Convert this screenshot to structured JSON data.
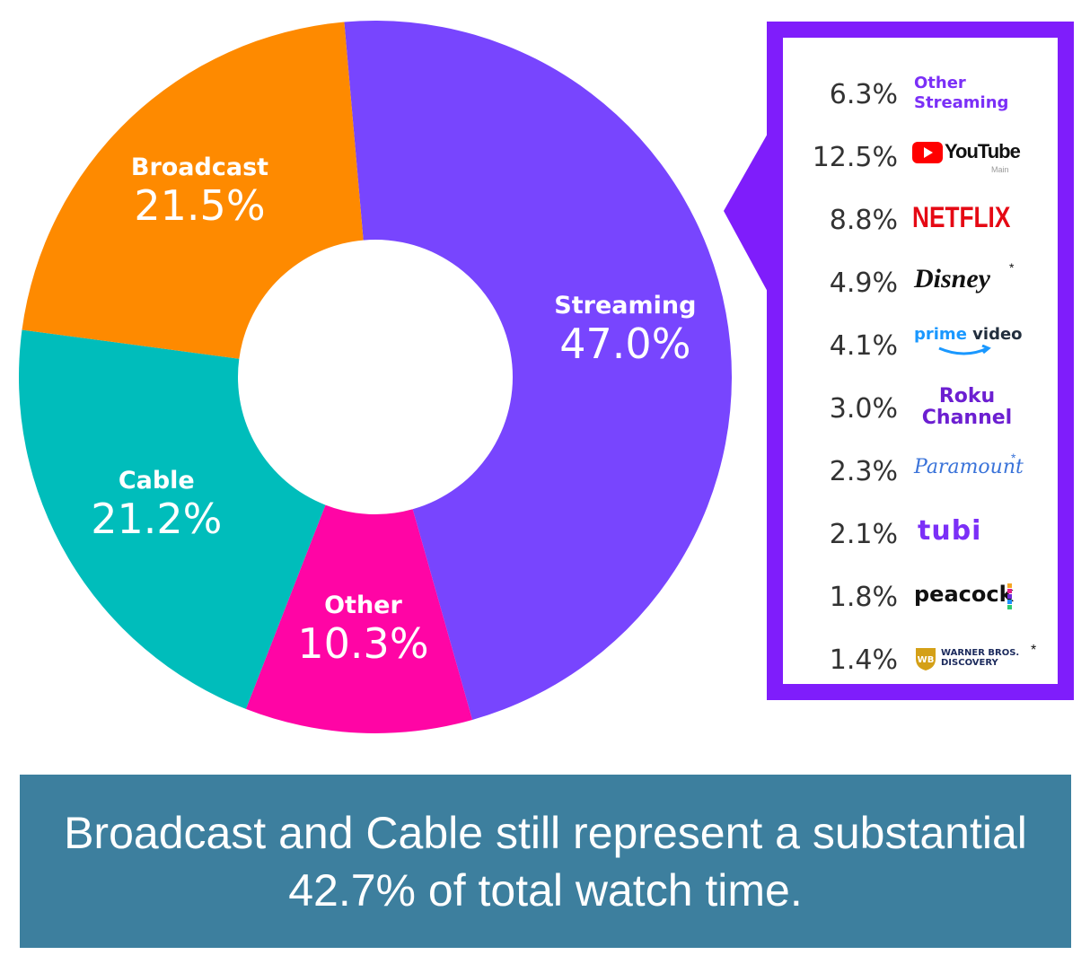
{
  "chart_data": {
    "type": "pie",
    "variant": "donut",
    "start_angle_deg": -5,
    "slices": [
      {
        "label": "Streaming",
        "value": 47.0,
        "display": "47.0%",
        "color": "#7845fe"
      },
      {
        "label": "Other",
        "value": 10.3,
        "display": "10.3%",
        "color": "#ff05a5"
      },
      {
        "label": "Cable",
        "value": 21.2,
        "display": "21.2%",
        "color": "#00bdbb"
      },
      {
        "label": "Broadcast",
        "value": 21.5,
        "display": "21.5%",
        "color": "#fe8a00"
      }
    ],
    "streaming_breakdown": [
      {
        "value": "6.3%",
        "service": "Other Streaming",
        "logo": "other-streaming-logo"
      },
      {
        "value": "12.5%",
        "service": "YouTube",
        "sub": "Main",
        "logo": "youtube-logo"
      },
      {
        "value": "8.8%",
        "service": "NETFLIX",
        "logo": "netflix-logo"
      },
      {
        "value": "4.9%",
        "service": "Disney",
        "mark": "*",
        "logo": "disney-logo"
      },
      {
        "value": "4.1%",
        "service": "prime video",
        "logo": "prime-video-logo"
      },
      {
        "value": "3.0%",
        "service": "Roku Channel",
        "line1": "Roku",
        "line2": "Channel",
        "logo": "roku-channel-logo"
      },
      {
        "value": "2.3%",
        "service": "Paramount",
        "mark": "*",
        "logo": "paramount-logo"
      },
      {
        "value": "2.1%",
        "service": "tubi",
        "logo": "tubi-logo"
      },
      {
        "value": "1.8%",
        "service": "peacock",
        "logo": "peacock-logo"
      },
      {
        "value": "1.4%",
        "service": "WARNER BROS. DISCOVERY",
        "line1": "WARNER BROS.",
        "line2": "DISCOVERY",
        "mark": "*",
        "logo": "warner-bros-discovery-logo"
      }
    ]
  },
  "caption": {
    "text": "Broadcast and Cable still represent a substantial 42.7% of total watch time."
  },
  "colors": {
    "panel_border": "#7f1dfb",
    "caption_bg": "#3d7f9e",
    "legend_text": "#333333",
    "service_purple": "#7b2ff7",
    "netflix_red": "#e50914",
    "youtube_red": "#ff0000",
    "roku_purple": "#6c1fd1",
    "prime_blue": "#1a98ff"
  }
}
